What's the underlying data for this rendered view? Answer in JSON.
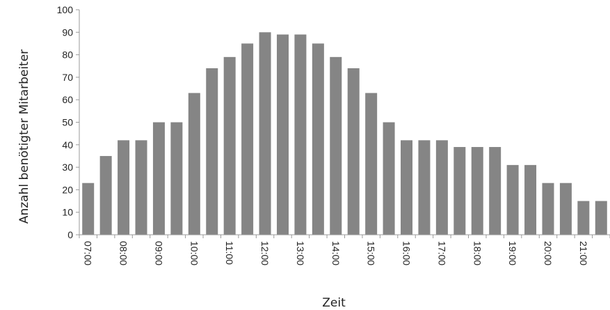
{
  "chart_data": {
    "type": "bar",
    "xlabel": "Zeit",
    "ylabel": "Anzahl benötigter Mitarbeiter",
    "ylim": [
      0,
      100
    ],
    "y_ticks": [
      0,
      10,
      20,
      30,
      40,
      50,
      60,
      70,
      80,
      90,
      100
    ],
    "x_tick_labels": [
      "07:00",
      "08:00",
      "09:00",
      "10:00",
      "11:00",
      "12:00",
      "13:00",
      "14:00",
      "15:00",
      "16:00",
      "17:00",
      "18:00",
      "19:00",
      "20:00",
      "21:00"
    ],
    "categories": [
      "07:00",
      "07:30",
      "08:00",
      "08:30",
      "09:00",
      "09:30",
      "10:00",
      "10:30",
      "11:00",
      "11:30",
      "12:00",
      "12:30",
      "13:00",
      "13:30",
      "14:00",
      "14:30",
      "15:00",
      "15:30",
      "16:00",
      "16:30",
      "17:00",
      "17:30",
      "18:00",
      "18:30",
      "19:00",
      "19:30",
      "20:00",
      "20:30",
      "21:00",
      "21:30"
    ],
    "values": [
      23,
      35,
      42,
      42,
      50,
      50,
      63,
      74,
      79,
      85,
      90,
      89,
      89,
      85,
      79,
      74,
      63,
      50,
      42,
      42,
      42,
      39,
      39,
      39,
      31,
      31,
      23,
      23,
      15,
      15
    ],
    "bar_color": "#858585",
    "grid": false,
    "legend": "none"
  }
}
